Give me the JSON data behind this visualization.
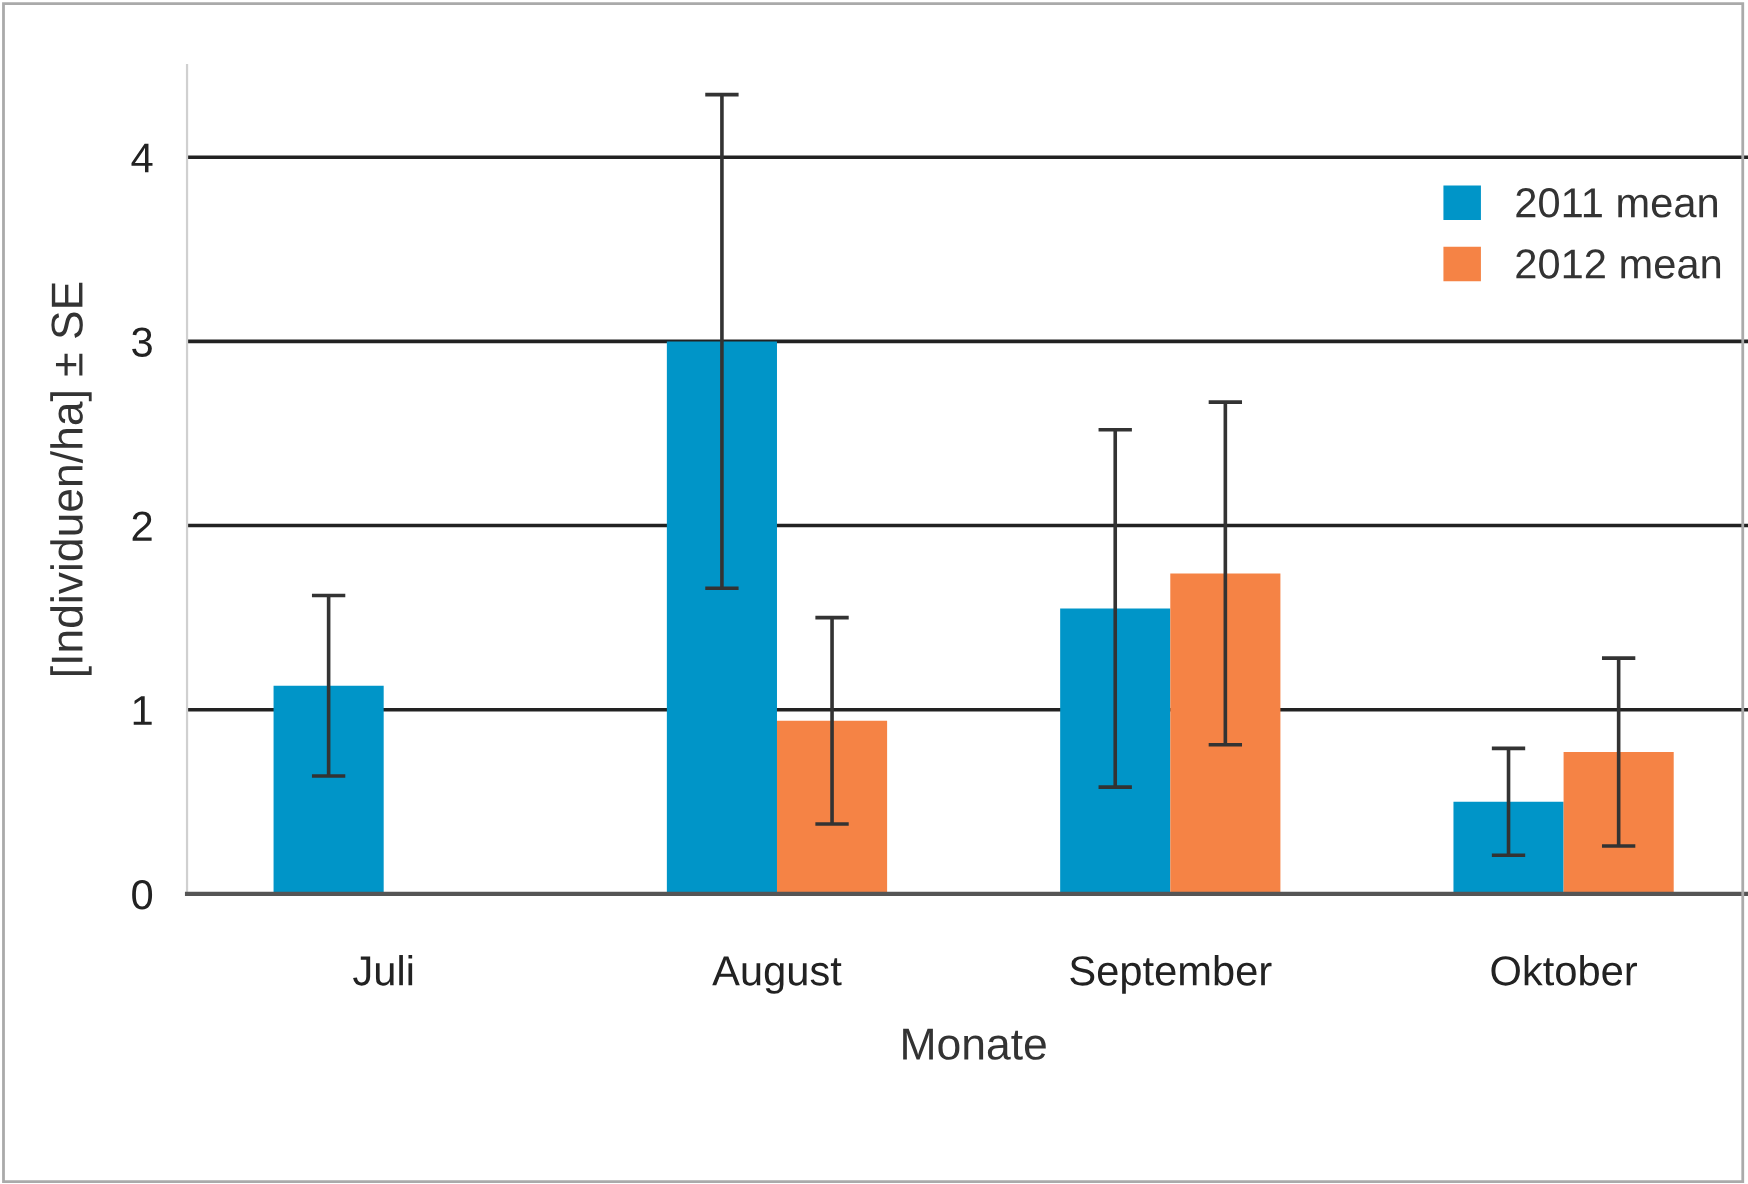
{
  "chart_data": {
    "type": "bar",
    "xlabel": "Monate",
    "ylabel": "[Individuen/ha] ± SE",
    "categories": [
      "Juli",
      "August",
      "September",
      "Oktober"
    ],
    "series": [
      {
        "name": "2011 mean",
        "color": "#0095c8",
        "values": [
          1.13,
          3.0,
          1.55,
          0.5
        ],
        "errors": [
          0.49,
          1.34,
          0.97,
          0.29
        ]
      },
      {
        "name": "2012 mean",
        "color": "#f58345",
        "values": [
          null,
          0.94,
          1.74,
          0.77
        ],
        "errors": [
          null,
          0.56,
          0.93,
          0.51
        ]
      }
    ],
    "ylim": [
      0,
      4.5
    ],
    "yticks": [
      0,
      1,
      2,
      3,
      4
    ],
    "grid": "y",
    "legend": "top right"
  }
}
